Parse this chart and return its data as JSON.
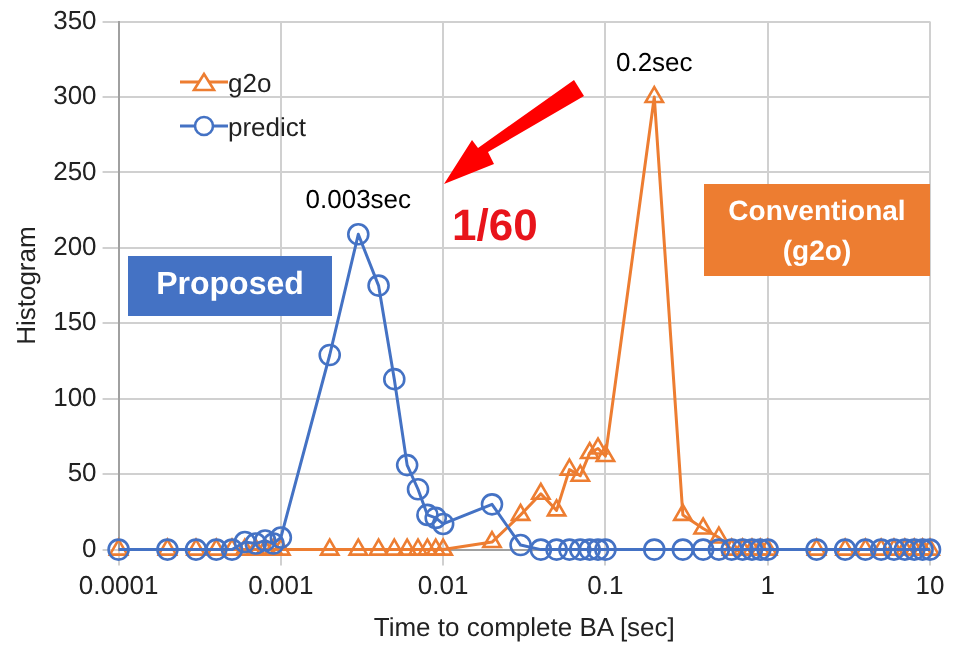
{
  "chart_data": {
    "type": "line",
    "xlabel": "Time to complete BA [sec]",
    "ylabel": "Histogram",
    "log": "x",
    "xlim": [
      0.0001,
      10
    ],
    "xticks": [
      0.0001,
      0.001,
      0.01,
      0.1,
      1,
      10
    ],
    "ylim": [
      0,
      350
    ],
    "yticks": [
      0,
      50,
      100,
      150,
      200,
      250,
      300,
      350
    ],
    "grid": true,
    "legend": "top left",
    "line_style": "solid",
    "series": [
      {
        "name": "g2o",
        "color": "#ed7d31",
        "marker": "triangle",
        "x": [
          0.0001,
          0.0002,
          0.0003,
          0.0004,
          0.0005,
          0.0006,
          0.0007,
          0.0008,
          0.0009,
          0.001,
          0.002,
          0.003,
          0.004,
          0.005,
          0.006,
          0.007,
          0.008,
          0.009,
          0.01,
          0.02,
          0.03,
          0.04,
          0.05,
          0.06,
          0.07,
          0.08,
          0.09,
          0.1,
          0.2,
          0.3,
          0.4,
          0.5,
          0.6,
          0.7,
          0.8,
          0.9,
          1,
          2,
          3,
          4,
          5,
          6,
          7,
          8,
          9,
          10
        ],
        "values": [
          0,
          0,
          0,
          0,
          0,
          0,
          0,
          0,
          0,
          0,
          0,
          0,
          0,
          0,
          0,
          0,
          0,
          0,
          0,
          5,
          23,
          37,
          26,
          53,
          49,
          64,
          67,
          62,
          300,
          23,
          14,
          8,
          0,
          0,
          0,
          0,
          0,
          0,
          0,
          0,
          0,
          0,
          0,
          0,
          0,
          0
        ]
      },
      {
        "name": "predict",
        "color": "#4472c4",
        "marker": "circle",
        "x": [
          0.0001,
          0.0002,
          0.0003,
          0.0004,
          0.0005,
          0.0006,
          0.0007,
          0.0008,
          0.0009,
          0.001,
          0.002,
          0.003,
          0.004,
          0.005,
          0.006,
          0.007,
          0.008,
          0.009,
          0.01,
          0.02,
          0.03,
          0.04,
          0.05,
          0.06,
          0.07,
          0.08,
          0.09,
          0.1,
          0.2,
          0.3,
          0.4,
          0.5,
          0.6,
          0.7,
          0.8,
          0.9,
          1,
          2,
          3,
          4,
          5,
          6,
          7,
          8,
          9,
          10
        ],
        "values": [
          0,
          0,
          0,
          0,
          0,
          5,
          4,
          6,
          4,
          8,
          129,
          209,
          175,
          113,
          56,
          40,
          23,
          21,
          17,
          30,
          3,
          0,
          0,
          0,
          0,
          0,
          0,
          0,
          0,
          0,
          0,
          0,
          0,
          0,
          0,
          0,
          0,
          0,
          0,
          0,
          0,
          0,
          0,
          0,
          0,
          0
        ]
      }
    ],
    "annotations": [
      {
        "text": "0.2sec",
        "x": 0.2,
        "y": 300
      },
      {
        "text": "0.003sec",
        "x": 0.003,
        "y": 209
      },
      "1/60",
      "Proposed",
      "Conventional\n(g2o)"
    ]
  }
}
